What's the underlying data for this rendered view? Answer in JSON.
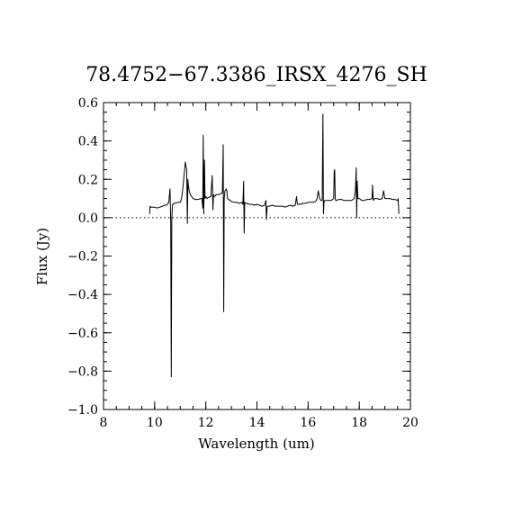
{
  "chart_data": {
    "type": "line",
    "title": "78.4752−67.3386_IRSX_4276_SH",
    "xlabel": "Wavelength (um)",
    "ylabel": "Flux (Jy)",
    "xlim": [
      8,
      20
    ],
    "ylim": [
      -1.0,
      0.6
    ],
    "xticks": [
      8,
      10,
      12,
      14,
      16,
      18,
      20
    ],
    "xtick_labels": [
      "8",
      "10",
      "12",
      "14",
      "16",
      "18",
      "20"
    ],
    "yticks": [
      -1.0,
      -0.8,
      -0.6,
      -0.4,
      -0.2,
      0.0,
      0.2,
      0.4,
      0.6
    ],
    "ytick_labels": [
      "−1.0",
      "−0.8",
      "−0.6",
      "−0.4",
      "−0.2",
      "0.0",
      "0.2",
      "0.4",
      "0.6"
    ],
    "x_minor_step": 0.5,
    "y_minor_step": 0.05,
    "reference_line": {
      "y": 0.0,
      "style": "dotted"
    },
    "grid": false,
    "legend": "none",
    "series": [
      {
        "x": [
          9.8,
          9.82,
          9.85,
          9.9,
          10.0,
          10.1,
          10.2,
          10.3,
          10.4,
          10.45,
          10.5,
          10.55,
          10.6,
          10.63,
          10.65,
          10.67,
          10.7,
          10.72,
          10.75,
          10.8,
          10.9,
          11.0,
          11.05,
          11.1,
          11.15,
          11.2,
          11.25,
          11.28,
          11.3,
          11.32,
          11.35,
          11.4,
          11.5,
          11.6,
          11.7,
          11.8,
          11.85,
          11.88,
          11.9,
          11.92,
          11.95,
          11.97,
          12.0,
          12.05,
          12.1,
          12.2,
          12.25,
          12.28,
          12.3,
          12.33,
          12.35,
          12.4,
          12.5,
          12.6,
          12.65,
          12.68,
          12.7,
          12.72,
          12.75,
          12.8,
          12.82,
          12.85,
          12.9,
          13.0,
          13.1,
          13.2,
          13.3,
          13.4,
          13.45,
          13.48,
          13.5,
          13.52,
          13.55,
          13.6,
          13.7,
          13.8,
          13.9,
          14.0,
          14.1,
          14.2,
          14.3,
          14.35,
          14.37,
          14.4,
          14.5,
          14.6,
          14.7,
          14.8,
          14.9,
          15.0,
          15.1,
          15.2,
          15.3,
          15.4,
          15.5,
          15.55,
          15.58,
          15.6,
          15.7,
          15.8,
          15.9,
          16.0,
          16.1,
          16.2,
          16.3,
          16.35,
          16.4,
          16.45,
          16.5,
          16.55,
          16.58,
          16.6,
          16.62,
          16.65,
          16.7,
          16.8,
          16.9,
          17.0,
          17.02,
          17.04,
          17.06,
          17.08,
          17.1,
          17.2,
          17.3,
          17.4,
          17.5,
          17.6,
          17.7,
          17.8,
          17.85,
          17.88,
          17.9,
          17.92,
          17.95,
          18.0,
          18.1,
          18.2,
          18.3,
          18.4,
          18.5,
          18.52,
          18.55,
          18.6,
          18.7,
          18.8,
          18.9,
          18.95,
          19.0,
          19.1,
          19.2,
          19.3,
          19.4,
          19.5,
          19.52,
          19.55
        ],
        "y": [
          0.02,
          0.06,
          0.055,
          0.055,
          0.055,
          0.05,
          0.055,
          0.06,
          0.065,
          0.065,
          0.07,
          0.08,
          0.15,
          -0.03,
          -0.83,
          0.0,
          0.07,
          0.07,
          0.075,
          0.075,
          0.08,
          0.08,
          0.1,
          0.15,
          0.22,
          0.29,
          0.25,
          -0.03,
          0.2,
          0.17,
          0.14,
          0.12,
          0.1,
          0.095,
          0.095,
          0.1,
          0.1,
          0.05,
          0.43,
          0.02,
          0.3,
          0.1,
          0.11,
          0.1,
          0.105,
          0.11,
          0.22,
          0.04,
          0.12,
          0.11,
          0.11,
          0.12,
          0.12,
          0.125,
          0.13,
          0.38,
          -0.49,
          0.1,
          0.14,
          0.15,
          0.14,
          0.1,
          0.095,
          0.085,
          0.08,
          0.08,
          0.075,
          0.08,
          0.07,
          0.19,
          -0.08,
          0.08,
          0.075,
          0.075,
          0.07,
          0.07,
          0.065,
          0.07,
          0.065,
          0.06,
          0.065,
          0.09,
          -0.01,
          0.06,
          0.06,
          0.065,
          0.06,
          0.06,
          0.06,
          0.06,
          0.055,
          0.06,
          0.065,
          0.06,
          0.065,
          0.11,
          0.07,
          0.07,
          0.07,
          0.075,
          0.075,
          0.08,
          0.08,
          0.08,
          0.085,
          0.1,
          0.14,
          0.1,
          0.09,
          0.09,
          0.54,
          0.02,
          0.08,
          0.09,
          0.09,
          0.09,
          0.09,
          0.1,
          0.24,
          0.25,
          0.1,
          0.09,
          0.09,
          0.095,
          0.095,
          0.09,
          0.09,
          0.09,
          0.09,
          0.1,
          0.14,
          0.26,
          0.0,
          0.19,
          0.1,
          0.1,
          0.09,
          0.09,
          0.095,
          0.095,
          0.1,
          0.17,
          0.09,
          0.1,
          0.1,
          0.095,
          0.1,
          0.14,
          0.1,
          0.1,
          0.1,
          0.095,
          0.095,
          0.09,
          0.1,
          0.02
        ]
      }
    ]
  }
}
